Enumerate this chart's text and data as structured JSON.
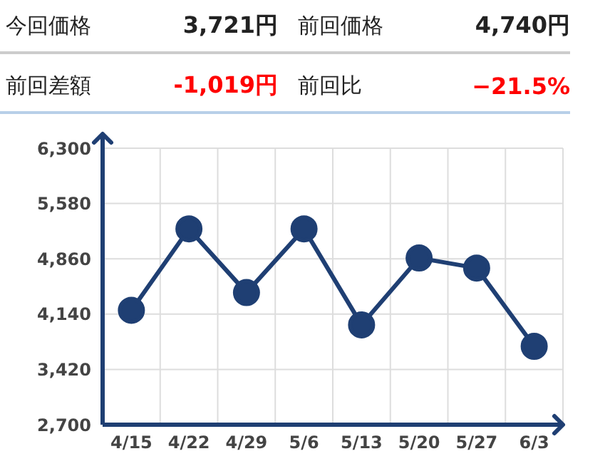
{
  "chart_data": {
    "type": "line",
    "annotations": [
      "今回価格",
      "3,721円",
      "前回価格",
      "4,740円",
      "前回差額",
      "-1,019円",
      "前回比",
      "−21.5%"
    ],
    "categories": [
      "4/15",
      "4/22",
      "4/29",
      "5/6",
      "5/13",
      "5/20",
      "5/27",
      "6/3"
    ],
    "series": [
      {
        "color": "#1f3f73",
        "values": [
          4190,
          5250,
          4420,
          5250,
          4000,
          4870,
          4740,
          3721
        ]
      }
    ],
    "ylim": [
      2700,
      6300
    ],
    "yticks": [
      {
        "value": 2700,
        "label": "2,700"
      },
      {
        "value": 3420,
        "label": "3,420"
      },
      {
        "value": 4140,
        "label": "4,140"
      },
      {
        "value": 4860,
        "label": "4,860"
      },
      {
        "value": 5580,
        "label": "5,580"
      },
      {
        "value": 6300,
        "label": "6,300"
      }
    ],
    "grid": true,
    "marker": "circle",
    "line_style": "solid",
    "legend": false
  }
}
